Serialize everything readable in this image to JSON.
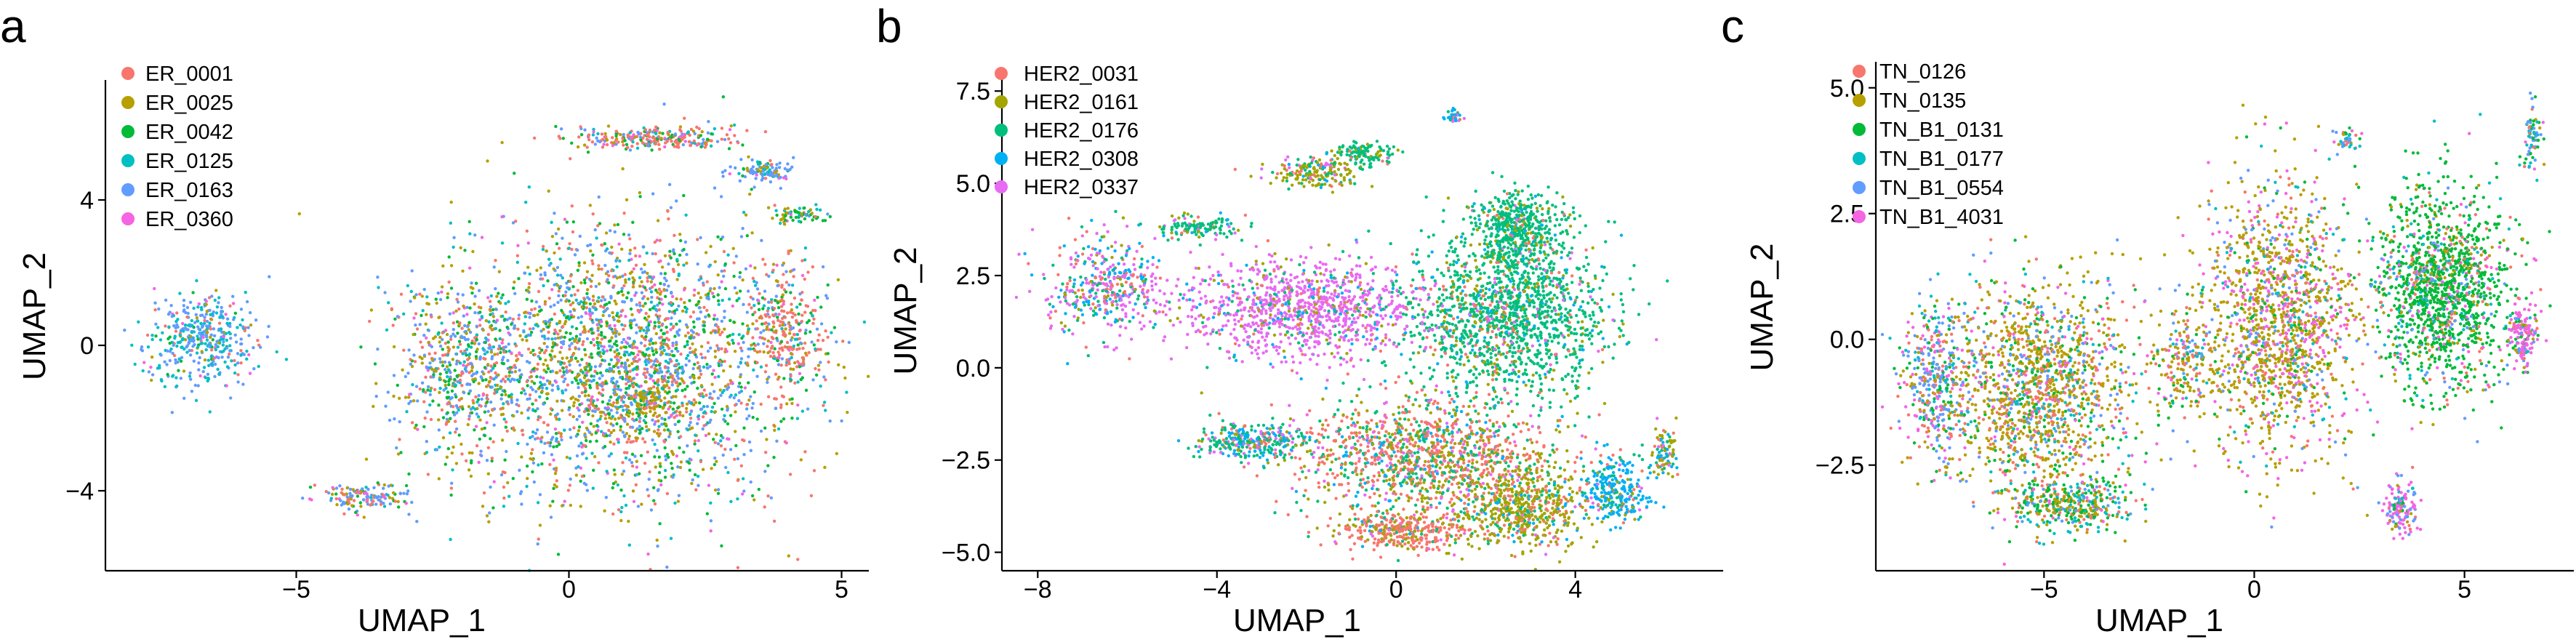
{
  "chart_data": [
    {
      "type": "scatter",
      "panel_label": "a",
      "xlabel": "UMAP_1",
      "ylabel": "UMAP_2",
      "xlim": [
        -8.5,
        5.5
      ],
      "ylim": [
        -6.2,
        7.0
      ],
      "xticks": [
        -5,
        0,
        5
      ],
      "xtick_labels": [
        "−5",
        "0",
        "5"
      ],
      "yticks": [
        -4,
        0,
        4
      ],
      "ytick_labels": [
        "−4",
        "0",
        "4"
      ],
      "grid": false,
      "legend_position": "top-left",
      "series": [
        {
          "name": "ER_0001",
          "color": "#F8766D"
        },
        {
          "name": "ER_0025",
          "color": "#B79F00"
        },
        {
          "name": "ER_0042",
          "color": "#00BA38"
        },
        {
          "name": "ER_0125",
          "color": "#00BFC4"
        },
        {
          "name": "ER_0163",
          "color": "#619CFF"
        },
        {
          "name": "ER_0360",
          "color": "#F564E3"
        }
      ],
      "clusters": [
        {
          "center": [
            1.0,
            -0.5
          ],
          "spread": [
            2.8,
            3.4
          ],
          "points": 2600,
          "weights": [
            1,
            1,
            1,
            0.6,
            1.4,
            0.3
          ]
        },
        {
          "center": [
            -2.0,
            -0.5
          ],
          "spread": [
            1.2,
            2.0
          ],
          "points": 500,
          "weights": [
            1,
            1,
            0.8,
            0.6,
            1.4,
            0.3
          ]
        },
        {
          "center": [
            -6.7,
            0.2
          ],
          "spread": [
            0.9,
            1.2
          ],
          "points": 420,
          "weights": [
            0.2,
            0.2,
            0.1,
            1.2,
            1.6,
            0.2
          ]
        },
        {
          "center": [
            -3.7,
            -4.2
          ],
          "spread": [
            0.7,
            0.3
          ],
          "points": 140,
          "weights": [
            0.6,
            0.6,
            0.4,
            0.3,
            1.6,
            0.4
          ]
        },
        {
          "center": [
            1.6,
            5.7
          ],
          "spread": [
            1.3,
            0.3
          ],
          "points": 260,
          "weights": [
            2,
            0.6,
            0.6,
            0.3,
            0.6,
            0.3
          ]
        },
        {
          "center": [
            3.6,
            4.8
          ],
          "spread": [
            0.5,
            0.3
          ],
          "points": 110,
          "weights": [
            0.3,
            0.3,
            0.3,
            0.4,
            2,
            0.2
          ]
        },
        {
          "center": [
            4.2,
            3.6
          ],
          "spread": [
            0.5,
            0.2
          ],
          "points": 70,
          "weights": [
            0.3,
            1,
            2,
            0.3,
            0.3,
            0.2
          ]
        },
        {
          "center": [
            4.0,
            0.5
          ],
          "spread": [
            0.6,
            1.4
          ],
          "points": 260,
          "weights": [
            2.5,
            0.5,
            0.5,
            0.3,
            0.5,
            0.2
          ]
        },
        {
          "center": [
            1.5,
            -1.5
          ],
          "spread": [
            0.4,
            0.4
          ],
          "points": 90,
          "weights": [
            0.2,
            2.5,
            0.6,
            0.2,
            0.2,
            0.1
          ]
        }
      ]
    },
    {
      "type": "scatter",
      "panel_label": "b",
      "xlabel": "UMAP_1",
      "ylabel": "UMAP_2",
      "xlim": [
        -8.8,
        7.3
      ],
      "ylim": [
        -5.5,
        7.8
      ],
      "xticks": [
        -8,
        -4,
        0,
        4
      ],
      "xtick_labels": [
        "−8",
        "−4",
        "0",
        "4"
      ],
      "yticks": [
        -5.0,
        -2.5,
        0.0,
        2.5,
        5.0,
        7.5
      ],
      "ytick_labels": [
        "−5.0",
        "−2.5",
        "0.0",
        "2.5",
        "5.0",
        "7.5"
      ],
      "grid": false,
      "legend_position": "top-left",
      "series": [
        {
          "name": "HER2_0031",
          "color": "#F8766D"
        },
        {
          "name": "HER2_0161",
          "color": "#A3A500"
        },
        {
          "name": "HER2_0176",
          "color": "#00BF7D"
        },
        {
          "name": "HER2_0308",
          "color": "#00B0F6"
        },
        {
          "name": "HER2_0337",
          "color": "#E76BF3"
        }
      ],
      "clusters": [
        {
          "center": [
            -2.0,
            1.6
          ],
          "spread": [
            2.5,
            1.2
          ],
          "points": 1100,
          "weights": [
            0.15,
            0.2,
            0.25,
            0.25,
            2.2
          ]
        },
        {
          "center": [
            -6.5,
            2.2
          ],
          "spread": [
            1.2,
            1.2
          ],
          "points": 420,
          "weights": [
            0.6,
            0.3,
            0.5,
            0.8,
            1.4
          ]
        },
        {
          "center": [
            2.5,
            1.5
          ],
          "spread": [
            2.0,
            2.0
          ],
          "points": 1500,
          "weights": [
            0.2,
            0.3,
            2.6,
            0.2,
            0.15
          ]
        },
        {
          "center": [
            2.7,
            3.8
          ],
          "spread": [
            0.9,
            0.9
          ],
          "points": 450,
          "weights": [
            0.1,
            0.3,
            2.8,
            0.1,
            0.1
          ]
        },
        {
          "center": [
            0.6,
            -2.4
          ],
          "spread": [
            2.6,
            1.5
          ],
          "points": 1300,
          "weights": [
            1.6,
            0.9,
            0.7,
            0.3,
            0.3
          ]
        },
        {
          "center": [
            2.9,
            -3.8
          ],
          "spread": [
            1.2,
            1.1
          ],
          "points": 550,
          "weights": [
            0.6,
            2.5,
            0.4,
            0.3,
            0.1
          ]
        },
        {
          "center": [
            0.2,
            -4.4
          ],
          "spread": [
            1.4,
            0.5
          ],
          "points": 350,
          "weights": [
            2.5,
            0.8,
            0.3,
            0.2,
            0.2
          ]
        },
        {
          "center": [
            4.9,
            -3.3
          ],
          "spread": [
            0.7,
            0.8
          ],
          "points": 280,
          "weights": [
            0.2,
            0.3,
            0.4,
            2.5,
            0.2
          ]
        },
        {
          "center": [
            -3.3,
            -2.0
          ],
          "spread": [
            1.2,
            0.4
          ],
          "points": 300,
          "weights": [
            0.2,
            0.3,
            1.5,
            0.8,
            0.6
          ]
        },
        {
          "center": [
            -1.8,
            5.3
          ],
          "spread": [
            0.9,
            0.4
          ],
          "points": 190,
          "weights": [
            0.4,
            2.0,
            0.8,
            0.2,
            0.3
          ]
        },
        {
          "center": [
            -0.7,
            5.8
          ],
          "spread": [
            0.6,
            0.3
          ],
          "points": 120,
          "weights": [
            0.1,
            0.3,
            2.5,
            0.1,
            0.1
          ]
        },
        {
          "center": [
            6.0,
            -2.3
          ],
          "spread": [
            0.3,
            0.6
          ],
          "points": 90,
          "weights": [
            0.3,
            2.0,
            0.4,
            0.8,
            0.1
          ]
        },
        {
          "center": [
            -4.5,
            3.8
          ],
          "spread": [
            1.0,
            0.3
          ],
          "points": 130,
          "weights": [
            0.2,
            0.3,
            1.8,
            0.3,
            0.3
          ]
        },
        {
          "center": [
            1.3,
            6.8
          ],
          "spread": [
            0.2,
            0.15
          ],
          "points": 40,
          "weights": [
            0.2,
            0.4,
            0.4,
            1.5,
            0.4
          ]
        }
      ]
    },
    {
      "type": "scatter",
      "panel_label": "c",
      "xlabel": "UMAP_1",
      "ylabel": "UMAP_2",
      "xlim": [
        -9.0,
        7.6
      ],
      "ylim": [
        -4.6,
        5.3
      ],
      "xticks": [
        -5,
        0,
        5
      ],
      "xtick_labels": [
        "−5",
        "0",
        "5"
      ],
      "yticks": [
        -2.5,
        0.0,
        2.5,
        5.0
      ],
      "ytick_labels": [
        "−2.5",
        "0.0",
        "2.5",
        "5.0"
      ],
      "grid": false,
      "legend_position": "top-left",
      "series": [
        {
          "name": "TN_0126",
          "color": "#F8766D"
        },
        {
          "name": "TN_0135",
          "color": "#B79F00"
        },
        {
          "name": "TN_B1_0131",
          "color": "#00BA38"
        },
        {
          "name": "TN_B1_0177",
          "color": "#00BFC4"
        },
        {
          "name": "TN_B1_0554",
          "color": "#619CFF"
        },
        {
          "name": "TN_B1_4031",
          "color": "#F564E3"
        }
      ],
      "clusters": [
        {
          "center": [
            -5.2,
            -1.0
          ],
          "spread": [
            2.0,
            1.9
          ],
          "points": 1500,
          "weights": [
            0.7,
            2.3,
            0.6,
            0.4,
            0.6,
            0.4
          ]
        },
        {
          "center": [
            -7.6,
            -0.8
          ],
          "spread": [
            0.7,
            1.4
          ],
          "points": 380,
          "weights": [
            0.6,
            0.6,
            0.5,
            0.6,
            1.4,
            1.0
          ]
        },
        {
          "center": [
            -4.4,
            -3.3
          ],
          "spread": [
            1.4,
            0.5
          ],
          "points": 380,
          "weights": [
            0.5,
            1.2,
            1.3,
            0.8,
            0.6,
            0.2
          ]
        },
        {
          "center": [
            0.6,
            0.3
          ],
          "spread": [
            1.7,
            2.4
          ],
          "points": 1500,
          "weights": [
            0.4,
            2.4,
            0.3,
            0.3,
            0.4,
            1.0
          ]
        },
        {
          "center": [
            4.5,
            1.0
          ],
          "spread": [
            1.4,
            1.8
          ],
          "points": 1400,
          "weights": [
            0.3,
            0.3,
            2.8,
            0.3,
            0.3,
            0.3
          ]
        },
        {
          "center": [
            6.4,
            0.1
          ],
          "spread": [
            0.3,
            0.6
          ],
          "points": 160,
          "weights": [
            0.2,
            0.2,
            0.4,
            0.2,
            0.3,
            2.5
          ]
        },
        {
          "center": [
            3.5,
            -3.3
          ],
          "spread": [
            0.4,
            0.5
          ],
          "points": 140,
          "weights": [
            0.3,
            0.3,
            0.3,
            0.3,
            0.8,
            2.0
          ]
        },
        {
          "center": [
            -1.7,
            -0.5
          ],
          "spread": [
            0.8,
            1.0
          ],
          "points": 200,
          "weights": [
            0.6,
            1.8,
            0.5,
            0.3,
            0.4,
            0.3
          ]
        },
        {
          "center": [
            6.6,
            4.0
          ],
          "spread": [
            0.2,
            0.6
          ],
          "points": 70,
          "weights": [
            0.2,
            0.3,
            1.4,
            0.6,
            1.2,
            0.2
          ]
        },
        {
          "center": [
            2.2,
            4.0
          ],
          "spread": [
            0.3,
            0.2
          ],
          "points": 40,
          "weights": [
            0.3,
            0.3,
            0.5,
            0.6,
            1.5,
            0.3
          ]
        }
      ]
    }
  ]
}
